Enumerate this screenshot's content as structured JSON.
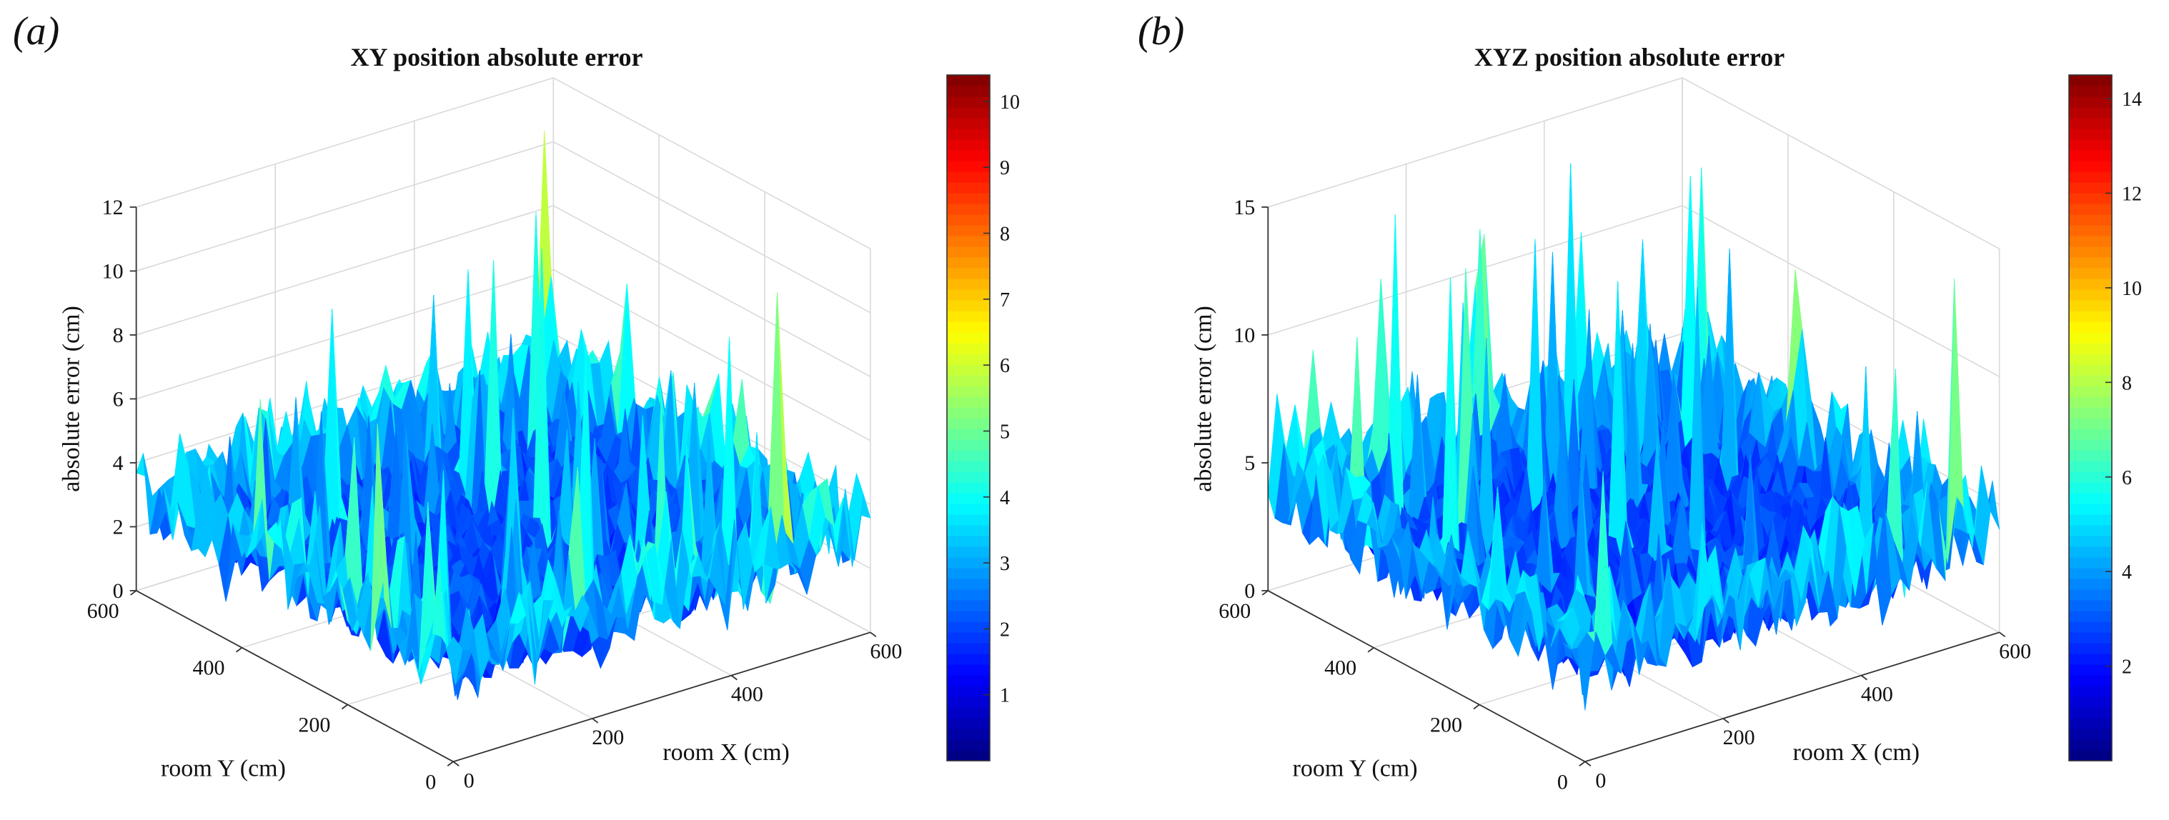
{
  "chart_data": [
    {
      "panel_label": "(a)",
      "type": "surface3d",
      "title": "XY position absolute error",
      "xlabel": "room X (cm)",
      "ylabel": "room Y (cm)",
      "zlabel": "absolute error (cm)",
      "x_ticks": [
        "0",
        "200",
        "400",
        "600"
      ],
      "y_ticks": [
        "0",
        "200",
        "400",
        "600"
      ],
      "z_ticks": [
        "0",
        "2",
        "4",
        "6",
        "8",
        "10",
        "12"
      ],
      "xlim": [
        0,
        600
      ],
      "ylim": [
        0,
        600
      ],
      "zlim": [
        0,
        12
      ],
      "colorbar": {
        "range": [
          0,
          10.4
        ],
        "ticks": [
          "1",
          "2",
          "3",
          "4",
          "5",
          "6",
          "7",
          "8",
          "9",
          "10"
        ]
      },
      "surface": {
        "baseline_error": 2,
        "peak_error": 11,
        "colormap": "jet",
        "seed": 7
      }
    },
    {
      "panel_label": "(b)",
      "type": "surface3d",
      "title": "XYZ position absolute error",
      "xlabel": "room X (cm)",
      "ylabel": "room Y (cm)",
      "zlabel": "absolute error (cm)",
      "x_ticks": [
        "0",
        "200",
        "400",
        "600"
      ],
      "y_ticks": [
        "0",
        "200",
        "400",
        "600"
      ],
      "z_ticks": [
        "0",
        "5",
        "10",
        "15"
      ],
      "xlim": [
        0,
        600
      ],
      "ylim": [
        0,
        600
      ],
      "zlim": [
        0,
        15
      ],
      "colorbar": {
        "range": [
          0,
          14.5
        ],
        "ticks": [
          "2",
          "4",
          "6",
          "8",
          "10",
          "12",
          "14"
        ]
      },
      "surface": {
        "baseline_error": 2.6,
        "peak_error": 15,
        "colormap": "jet",
        "seed": 19
      }
    }
  ]
}
